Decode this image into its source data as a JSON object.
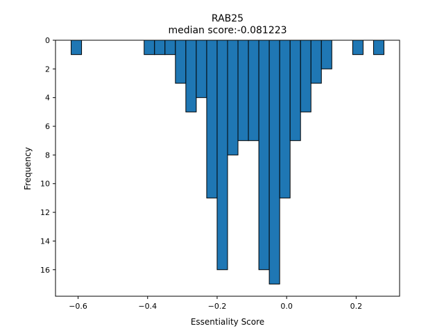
{
  "chart_data": {
    "type": "bar",
    "title": "RAB25",
    "subtitle": "median score:-0.081223",
    "xlabel": "Essentiality Score",
    "ylabel": "Frequency",
    "y_inverted": true,
    "xlim": [
      -0.665,
      0.325
    ],
    "ylim": [
      0,
      17.85
    ],
    "xticks": [
      -0.6,
      -0.4,
      -0.2,
      0.0,
      0.2
    ],
    "xtick_labels": [
      "−0.6",
      "−0.4",
      "−0.2",
      "0.0",
      "0.2"
    ],
    "yticks": [
      0,
      2,
      4,
      6,
      8,
      10,
      12,
      14,
      16
    ],
    "ytick_labels": [
      "0",
      "2",
      "4",
      "6",
      "8",
      "10",
      "12",
      "14",
      "16"
    ],
    "grid": false,
    "bar_color": "#1f77b4",
    "edge_color": "#000000",
    "bins": [
      {
        "x0": -0.62,
        "x1": -0.59,
        "count": 1
      },
      {
        "x0": -0.59,
        "x1": -0.56,
        "count": 0
      },
      {
        "x0": -0.56,
        "x1": -0.53,
        "count": 0
      },
      {
        "x0": -0.53,
        "x1": -0.5,
        "count": 0
      },
      {
        "x0": -0.5,
        "x1": -0.47,
        "count": 0
      },
      {
        "x0": -0.47,
        "x1": -0.44,
        "count": 0
      },
      {
        "x0": -0.44,
        "x1": -0.41,
        "count": 0
      },
      {
        "x0": -0.41,
        "x1": -0.38,
        "count": 1
      },
      {
        "x0": -0.38,
        "x1": -0.35,
        "count": 1
      },
      {
        "x0": -0.35,
        "x1": -0.32,
        "count": 1
      },
      {
        "x0": -0.32,
        "x1": -0.29,
        "count": 3
      },
      {
        "x0": -0.29,
        "x1": -0.26,
        "count": 5
      },
      {
        "x0": -0.26,
        "x1": -0.23,
        "count": 4
      },
      {
        "x0": -0.23,
        "x1": -0.2,
        "count": 11
      },
      {
        "x0": -0.2,
        "x1": -0.17,
        "count": 16
      },
      {
        "x0": -0.17,
        "x1": -0.14,
        "count": 8
      },
      {
        "x0": -0.14,
        "x1": -0.11,
        "count": 7
      },
      {
        "x0": -0.11,
        "x1": -0.08,
        "count": 7
      },
      {
        "x0": -0.08,
        "x1": -0.05,
        "count": 16
      },
      {
        "x0": -0.05,
        "x1": -0.02,
        "count": 17
      },
      {
        "x0": -0.02,
        "x1": 0.01,
        "count": 11
      },
      {
        "x0": 0.01,
        "x1": 0.04,
        "count": 7
      },
      {
        "x0": 0.04,
        "x1": 0.07,
        "count": 5
      },
      {
        "x0": 0.07,
        "x1": 0.1,
        "count": 3
      },
      {
        "x0": 0.1,
        "x1": 0.13,
        "count": 2
      },
      {
        "x0": 0.13,
        "x1": 0.16,
        "count": 0
      },
      {
        "x0": 0.16,
        "x1": 0.19,
        "count": 0
      },
      {
        "x0": 0.19,
        "x1": 0.22,
        "count": 1
      },
      {
        "x0": 0.22,
        "x1": 0.25,
        "count": 0
      },
      {
        "x0": 0.25,
        "x1": 0.28,
        "count": 1
      }
    ]
  }
}
